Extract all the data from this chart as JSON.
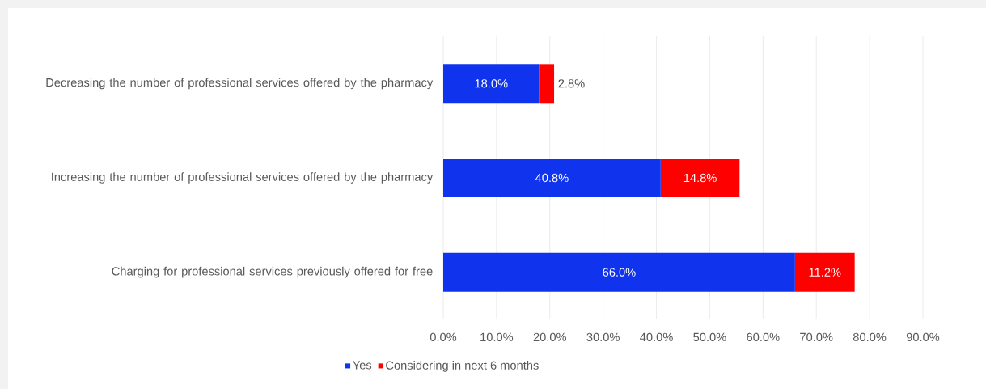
{
  "chart_data": {
    "type": "bar",
    "orientation": "horizontal",
    "stacked": true,
    "categories": [
      "Decreasing the number of professional services offered by the pharmacy",
      "Increasing the number of professional services offered by the pharmacy",
      "Charging for professional services previously offered for free"
    ],
    "series": [
      {
        "name": "Yes",
        "color": "#1033ee",
        "values": [
          18.0,
          40.8,
          66.0
        ],
        "value_labels": [
          "18.0%",
          "40.8%",
          "66.0%"
        ]
      },
      {
        "name": "Considering in next 6 months",
        "color": "#ff0000",
        "values": [
          2.8,
          14.8,
          11.2
        ],
        "value_labels": [
          "2.8%",
          "14.8%",
          "11.2%"
        ]
      }
    ],
    "xlim": [
      0,
      90
    ],
    "xticks": [
      {
        "value": 0,
        "label": "0.0%"
      },
      {
        "value": 10,
        "label": "10.0%"
      },
      {
        "value": 20,
        "label": "20.0%"
      },
      {
        "value": 30,
        "label": "30.0%"
      },
      {
        "value": 40,
        "label": "40.0%"
      },
      {
        "value": 50,
        "label": "50.0%"
      },
      {
        "value": 60,
        "label": "60.0%"
      },
      {
        "value": 70,
        "label": "70.0%"
      },
      {
        "value": 80,
        "label": "80.0%"
      },
      {
        "value": 90,
        "label": "90.0%"
      }
    ],
    "grid": "x",
    "legend": "bottom"
  }
}
